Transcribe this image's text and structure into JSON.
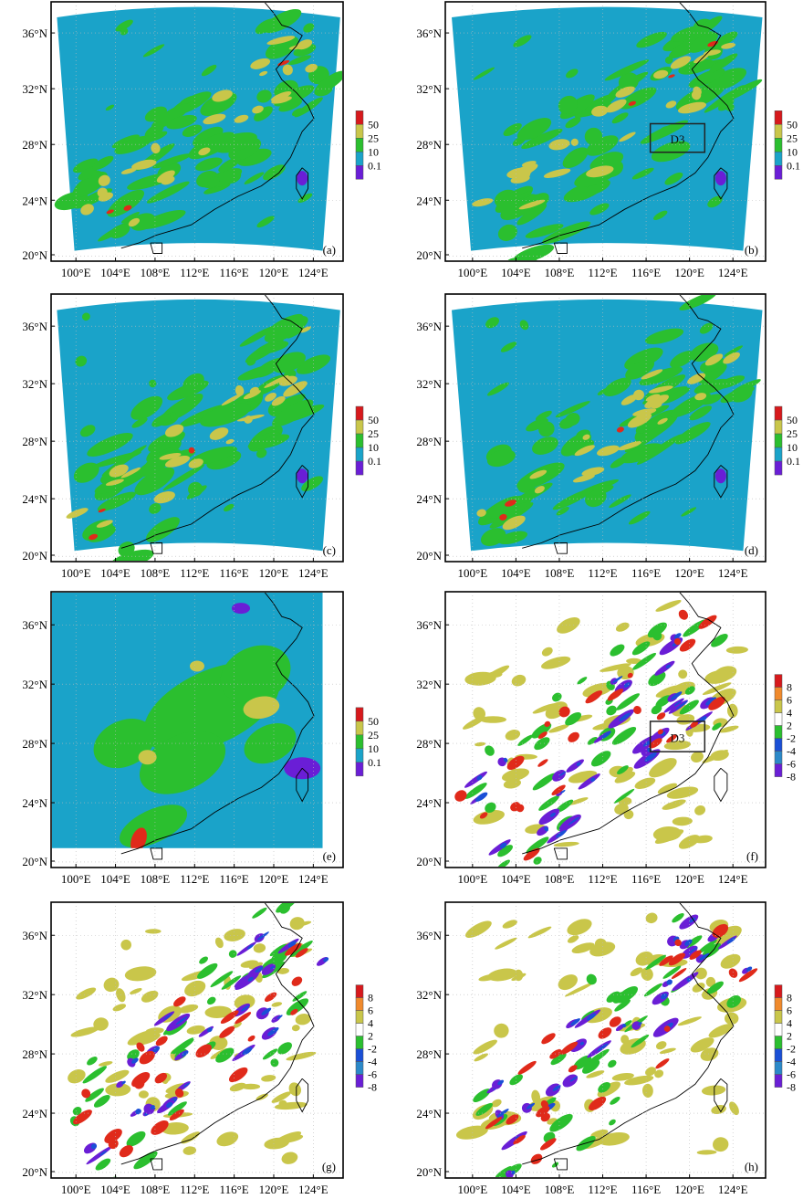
{
  "figure": {
    "colors": {
      "background_field": "#1aa3c9",
      "light_rain": "#2bbf2f",
      "moderate_rain": "#c9c64a",
      "heavy_rain": "#e02a1a",
      "trace": "#6a1ed6",
      "dark_blue": "#1a4fd6",
      "white": "#ffffff",
      "coast": "#000000"
    },
    "colorbar_precip": {
      "labels": [
        "50",
        "25",
        "10",
        "0.1"
      ],
      "colors": [
        "#d7191c",
        "#c9c64a",
        "#2bbf2f",
        "#1aa3c9",
        "#6a1ed6"
      ]
    },
    "colorbar_diff": {
      "labels": [
        "8",
        "6",
        "4",
        "2",
        "-2",
        "-4",
        "-6",
        "-8"
      ],
      "colors": [
        "#d7191c",
        "#f08a2c",
        "#c9c64a",
        "#ffffff",
        "#2bbf2f",
        "#1a4fd6",
        "#2b89c9",
        "#6a1ed6"
      ]
    },
    "lat_ticks": [
      "36°N",
      "32°N",
      "28°N",
      "24°N",
      "20°N"
    ],
    "lon_ticks": [
      "100°E",
      "104°E",
      "108°E",
      "112°E",
      "116°E",
      "120°E",
      "124°E"
    ],
    "box_label": "D3",
    "panels": [
      {
        "id": "a",
        "label": "(a)",
        "type": "precip",
        "show_box": false
      },
      {
        "id": "b",
        "label": "(b)",
        "type": "precip",
        "show_box": true
      },
      {
        "id": "c",
        "label": "(c)",
        "type": "precip",
        "show_box": false
      },
      {
        "id": "d",
        "label": "(d)",
        "type": "precip",
        "show_box": false
      },
      {
        "id": "e",
        "label": "(e)",
        "type": "obs",
        "show_box": false
      },
      {
        "id": "f",
        "label": "(f)",
        "type": "diff",
        "show_box": true
      },
      {
        "id": "g",
        "label": "(g)",
        "type": "diff",
        "show_box": false
      },
      {
        "id": "h",
        "label": "(h)",
        "type": "diff",
        "show_box": false
      }
    ]
  }
}
